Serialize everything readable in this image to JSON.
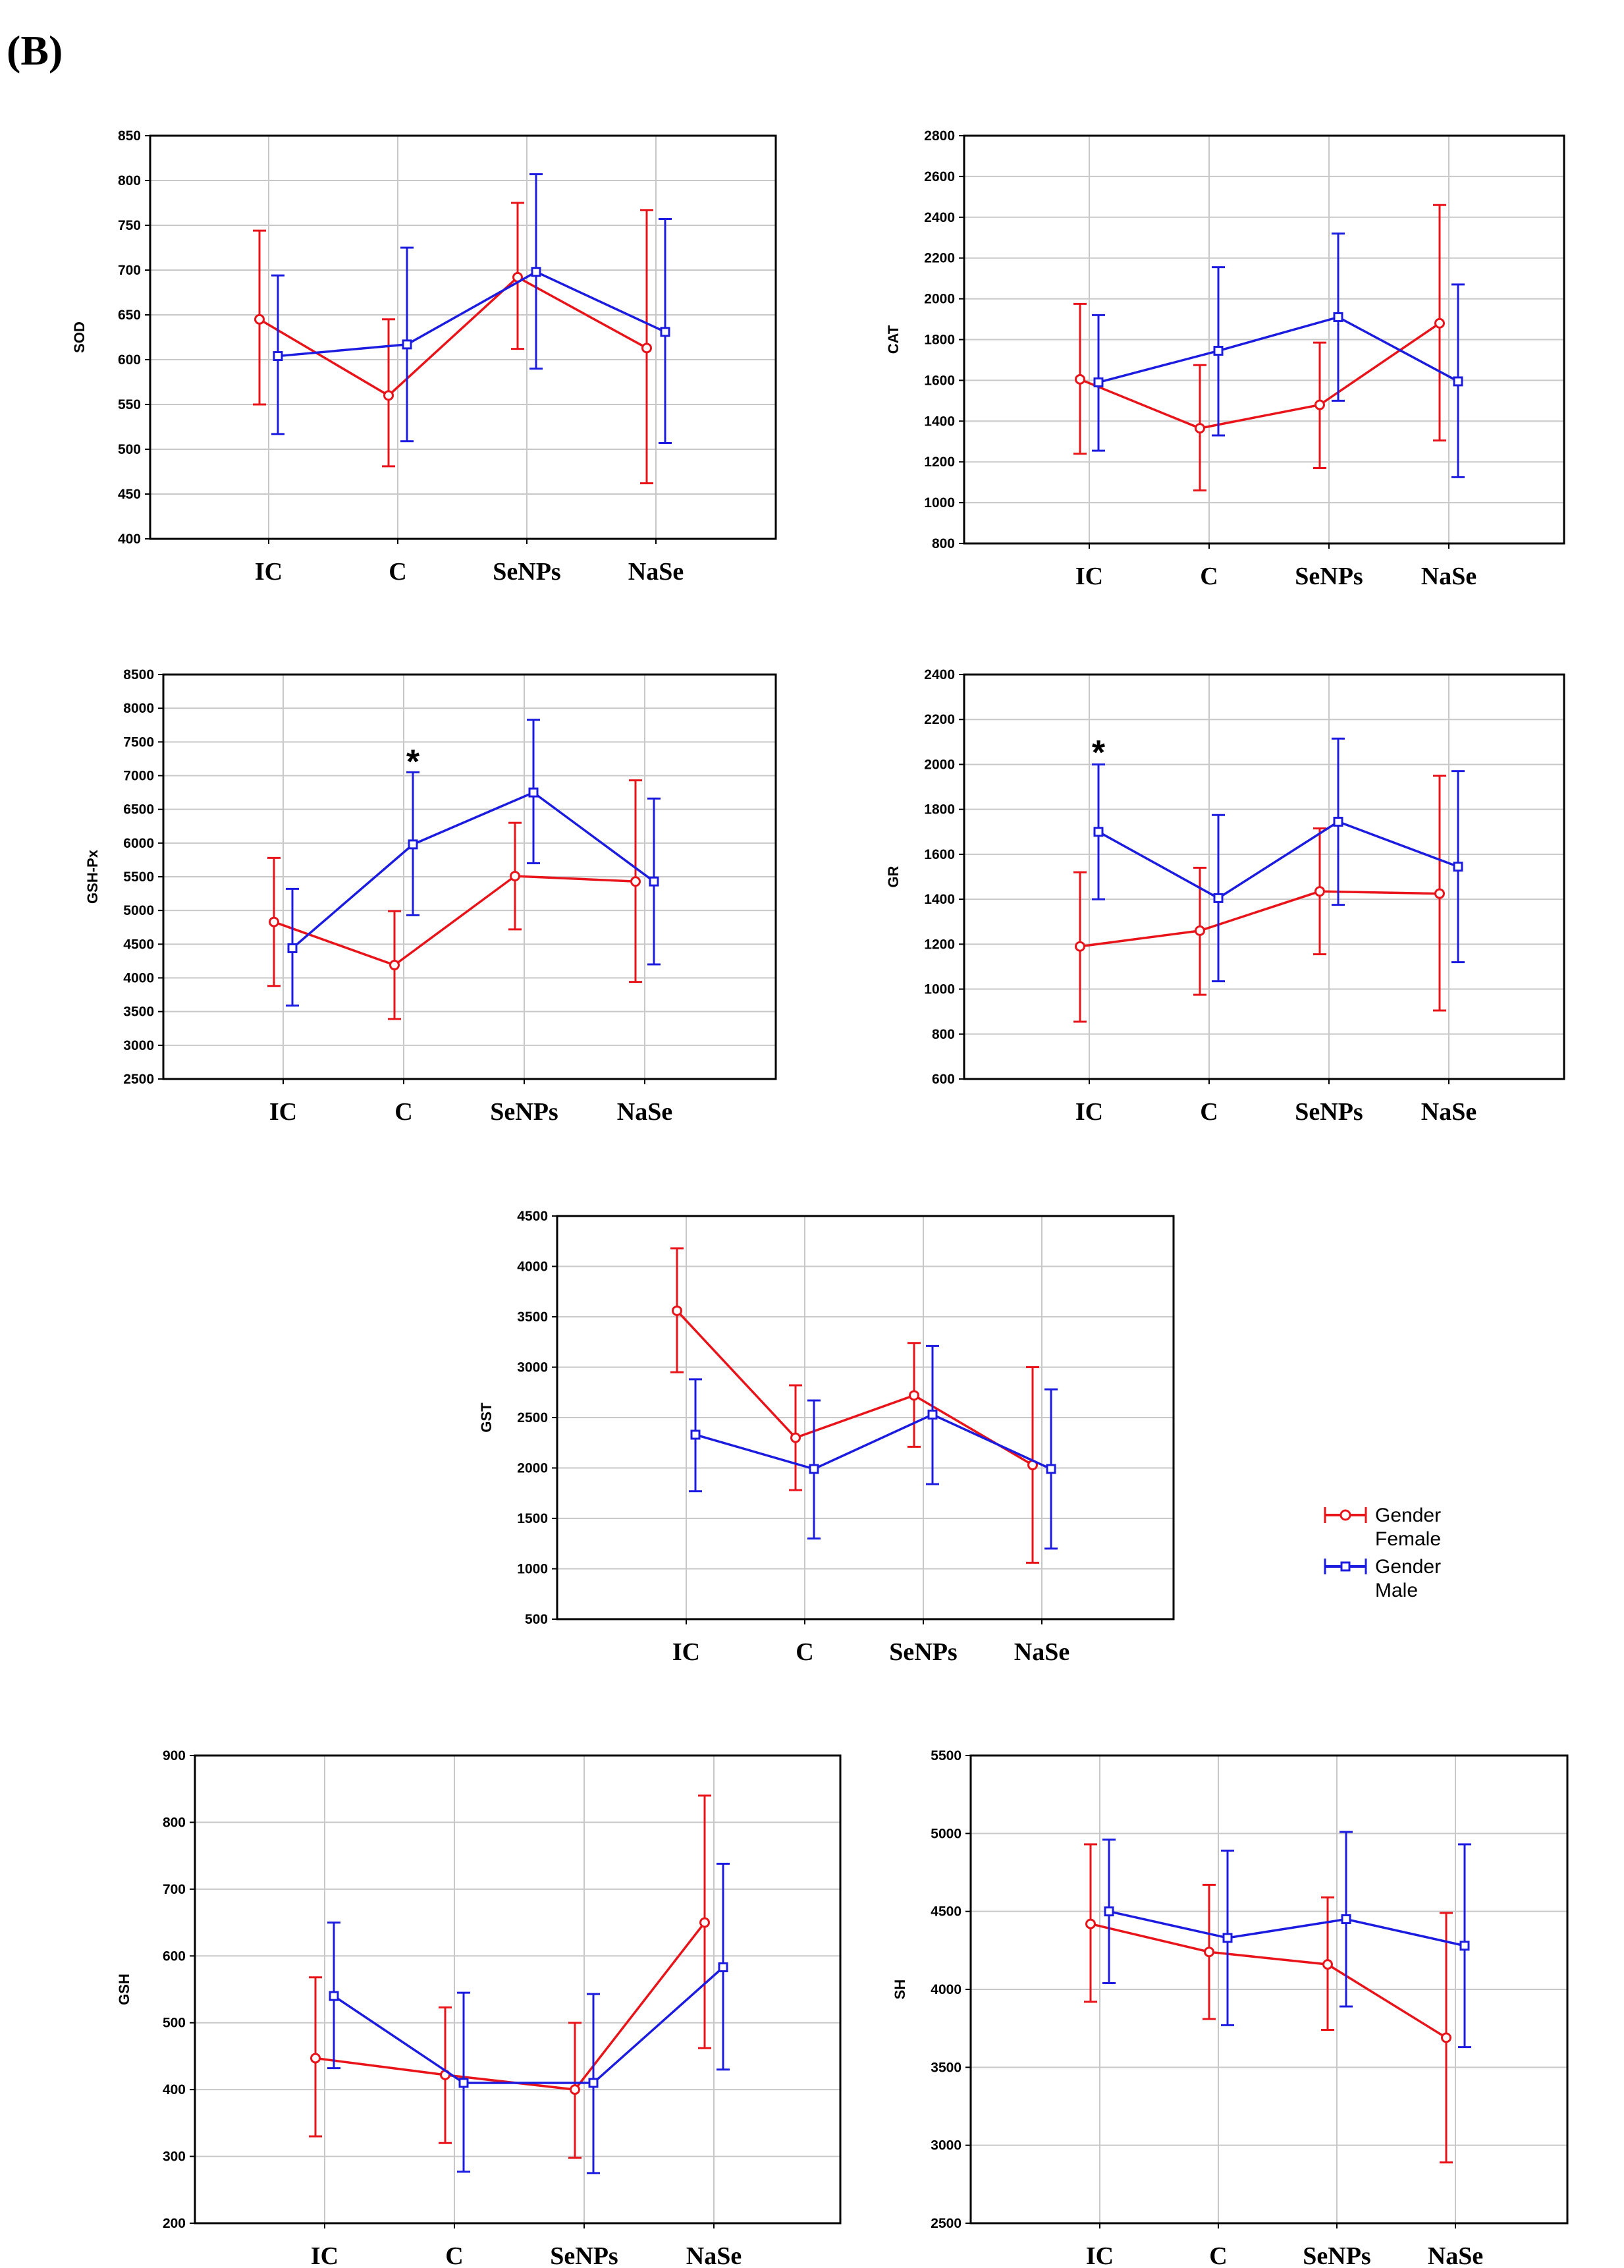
{
  "figure": {
    "panel_label": "(B)",
    "colors": {
      "female": "#e8141a",
      "male": "#1c1ce0",
      "grid": "#c8c8c8",
      "axis": "#000000"
    }
  },
  "legend": {
    "entries": [
      {
        "line1": "Gender",
        "line2": "Female",
        "color": "#e8141a"
      },
      {
        "line1": "Gender",
        "line2": "Male",
        "color": "#1c1ce0"
      }
    ]
  },
  "chart_data": [
    {
      "id": "sod",
      "type": "line",
      "ylabel": "SOD",
      "categories": [
        "IC",
        "C",
        "SeNPs",
        "NaSe"
      ],
      "ylim": [
        400,
        850
      ],
      "yticks": [
        400,
        450,
        500,
        550,
        600,
        650,
        700,
        750,
        800,
        850
      ],
      "series": [
        {
          "name": "Female",
          "color": "#e8141a",
          "values": [
            645,
            560,
            692,
            613
          ],
          "lower": [
            550,
            481,
            612,
            462
          ],
          "upper": [
            744,
            645,
            775,
            767
          ]
        },
        {
          "name": "Male",
          "color": "#1c1ce0",
          "values": [
            604,
            617,
            698,
            631
          ],
          "lower": [
            517,
            509,
            590,
            507
          ],
          "upper": [
            694,
            725,
            807,
            757
          ]
        }
      ],
      "annotations": []
    },
    {
      "id": "cat",
      "type": "line",
      "ylabel": "CAT",
      "categories": [
        "IC",
        "C",
        "SeNPs",
        "NaSe"
      ],
      "ylim": [
        800,
        2800
      ],
      "yticks": [
        800,
        1000,
        1200,
        1400,
        1600,
        1800,
        2000,
        2200,
        2400,
        2600,
        2800
      ],
      "series": [
        {
          "name": "Female",
          "color": "#e8141a",
          "values": [
            1605,
            1365,
            1480,
            1880
          ],
          "lower": [
            1240,
            1060,
            1170,
            1305
          ],
          "upper": [
            1975,
            1675,
            1785,
            2460
          ]
        },
        {
          "name": "Male",
          "color": "#1c1ce0",
          "values": [
            1590,
            1745,
            1910,
            1595
          ],
          "lower": [
            1255,
            1330,
            1500,
            1125
          ],
          "upper": [
            1920,
            2155,
            2320,
            2070
          ]
        }
      ],
      "annotations": []
    },
    {
      "id": "gshpx",
      "type": "line",
      "ylabel": "GSH-Px",
      "categories": [
        "IC",
        "C",
        "SeNPs",
        "NaSe"
      ],
      "ylim": [
        2500,
        8500
      ],
      "yticks": [
        2500,
        3000,
        3500,
        4000,
        4500,
        5000,
        5500,
        6000,
        6500,
        7000,
        7500,
        8000,
        8500
      ],
      "series": [
        {
          "name": "Female",
          "color": "#e8141a",
          "values": [
            4830,
            4190,
            5510,
            5430
          ],
          "lower": [
            3880,
            3390,
            4720,
            3940
          ],
          "upper": [
            5780,
            4990,
            6300,
            6930
          ]
        },
        {
          "name": "Male",
          "color": "#1c1ce0",
          "values": [
            4440,
            5980,
            6750,
            5430
          ],
          "lower": [
            3590,
            4930,
            5700,
            4200
          ],
          "upper": [
            5320,
            7050,
            7830,
            6660
          ]
        }
      ],
      "annotations": [
        {
          "category": "C",
          "text": "*",
          "y": 7230
        }
      ]
    },
    {
      "id": "gr",
      "type": "line",
      "ylabel": "GR",
      "categories": [
        "IC",
        "C",
        "SeNPs",
        "NaSe"
      ],
      "ylim": [
        600,
        2400
      ],
      "yticks": [
        600,
        800,
        1000,
        1200,
        1400,
        1600,
        1800,
        2000,
        2200,
        2400
      ],
      "series": [
        {
          "name": "Female",
          "color": "#e8141a",
          "values": [
            1190,
            1260,
            1435,
            1425
          ],
          "lower": [
            855,
            975,
            1155,
            905
          ],
          "upper": [
            1520,
            1540,
            1715,
            1950
          ]
        },
        {
          "name": "Male",
          "color": "#1c1ce0",
          "values": [
            1700,
            1405,
            1745,
            1545
          ],
          "lower": [
            1400,
            1035,
            1375,
            1120
          ],
          "upper": [
            2000,
            1775,
            2115,
            1970
          ]
        }
      ],
      "annotations": [
        {
          "category": "IC",
          "text": "*",
          "y": 2060
        }
      ]
    },
    {
      "id": "gst",
      "type": "line",
      "ylabel": "GST",
      "categories": [
        "IC",
        "C",
        "SeNPs",
        "NaSe"
      ],
      "ylim": [
        500,
        4500
      ],
      "yticks": [
        500,
        1000,
        1500,
        2000,
        2500,
        3000,
        3500,
        4000,
        4500
      ],
      "series": [
        {
          "name": "Female",
          "color": "#e8141a",
          "values": [
            3560,
            2300,
            2720,
            2030
          ],
          "lower": [
            2950,
            1780,
            2210,
            1060
          ],
          "upper": [
            4180,
            2820,
            3240,
            3000
          ]
        },
        {
          "name": "Male",
          "color": "#1c1ce0",
          "values": [
            2330,
            1990,
            2530,
            1990
          ],
          "lower": [
            1770,
            1300,
            1840,
            1200
          ],
          "upper": [
            2880,
            2670,
            3210,
            2780
          ]
        }
      ],
      "annotations": []
    },
    {
      "id": "gsh",
      "type": "line",
      "ylabel": "GSH",
      "categories": [
        "IC",
        "C",
        "SeNPs",
        "NaSe"
      ],
      "ylim": [
        200,
        900
      ],
      "yticks": [
        200,
        300,
        400,
        500,
        600,
        700,
        800,
        900
      ],
      "series": [
        {
          "name": "Female",
          "color": "#e8141a",
          "values": [
            447,
            422,
            400,
            650
          ],
          "lower": [
            330,
            320,
            298,
            462
          ],
          "upper": [
            568,
            523,
            500,
            840
          ]
        },
        {
          "name": "Male",
          "color": "#1c1ce0",
          "values": [
            540,
            410,
            410,
            583
          ],
          "lower": [
            432,
            277,
            275,
            430
          ],
          "upper": [
            650,
            545,
            543,
            738
          ]
        }
      ],
      "annotations": []
    },
    {
      "id": "sh",
      "type": "line",
      "ylabel": "SH",
      "categories": [
        "IC",
        "C",
        "SeNPs",
        "NaSe"
      ],
      "ylim": [
        2500,
        5500
      ],
      "yticks": [
        2500,
        3000,
        3500,
        4000,
        4500,
        5000,
        5500
      ],
      "series": [
        {
          "name": "Female",
          "color": "#e8141a",
          "values": [
            4420,
            4240,
            4160,
            3690
          ],
          "lower": [
            3920,
            3810,
            3740,
            2890
          ],
          "upper": [
            4930,
            4670,
            4590,
            4490
          ]
        },
        {
          "name": "Male",
          "color": "#1c1ce0",
          "values": [
            4500,
            4330,
            4450,
            4280
          ],
          "lower": [
            4040,
            3770,
            3890,
            3630
          ],
          "upper": [
            4960,
            4890,
            5010,
            4930
          ]
        }
      ],
      "annotations": []
    }
  ]
}
